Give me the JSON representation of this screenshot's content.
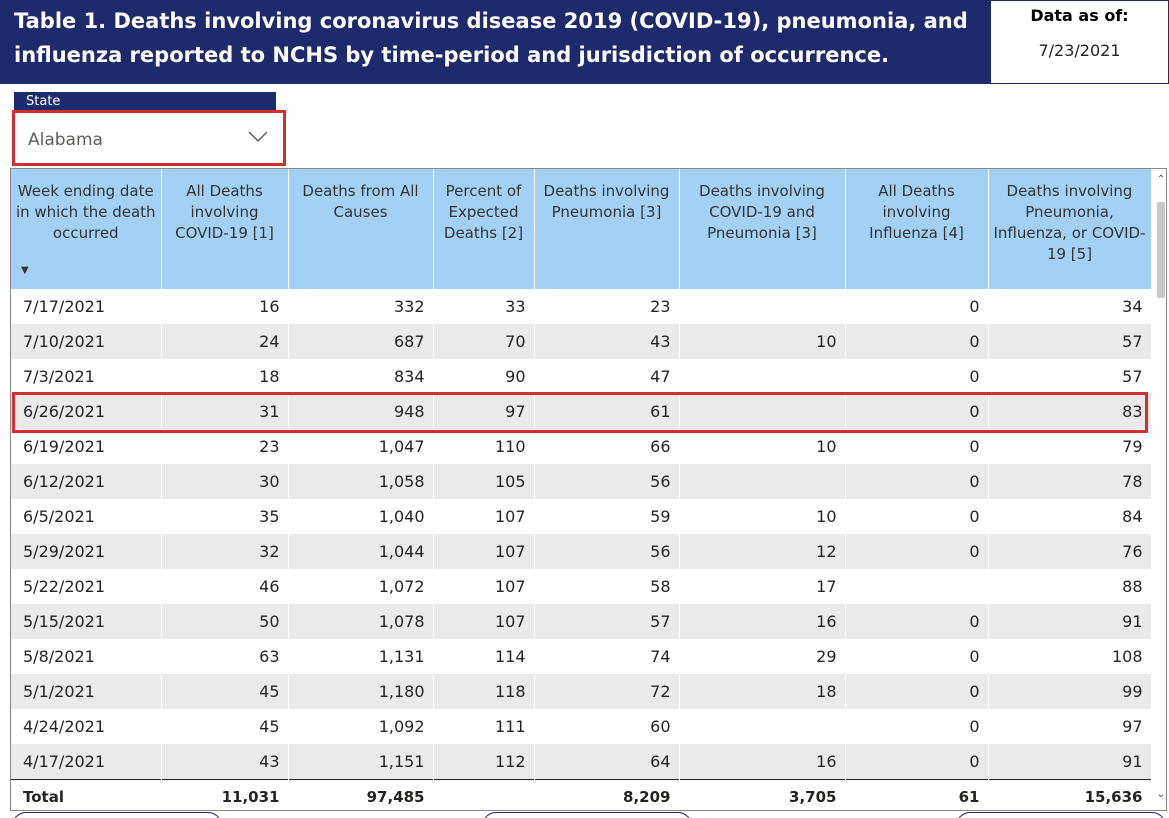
{
  "title": {
    "line1": "Table 1. Deaths involving coronavirus disease 2019 (COVID-19), pneumonia, and",
    "line2": "influenza reported to NCHS by time-period and jurisdiction of occurrence."
  },
  "data_as_of": {
    "label": "Data as of:",
    "value": "7/23/2021"
  },
  "slicer": {
    "header": "State",
    "selected": "Alabama",
    "icon": "chevron-down-icon"
  },
  "table": {
    "headers": [
      "Week ending date in which the death occurred",
      "All Deaths involving COVID-19 [1]",
      "Deaths from All Causes",
      "Percent of Expected Deaths [2]",
      "Deaths involving Pneumonia [3]",
      "Deaths involving COVID-19 and Pneumonia [3]",
      "All Deaths involving Influenza [4]",
      "Deaths involving Pneumonia, Influenza, or COVID-19 [5]"
    ],
    "rows": [
      [
        "7/17/2021",
        "16",
        "332",
        "33",
        "23",
        "",
        "0",
        "34"
      ],
      [
        "7/10/2021",
        "24",
        "687",
        "70",
        "43",
        "10",
        "0",
        "57"
      ],
      [
        "7/3/2021",
        "18",
        "834",
        "90",
        "47",
        "",
        "0",
        "57"
      ],
      [
        "6/26/2021",
        "31",
        "948",
        "97",
        "61",
        "",
        "0",
        "83"
      ],
      [
        "6/19/2021",
        "23",
        "1,047",
        "110",
        "66",
        "10",
        "0",
        "79"
      ],
      [
        "6/12/2021",
        "30",
        "1,058",
        "105",
        "56",
        "",
        "0",
        "78"
      ],
      [
        "6/5/2021",
        "35",
        "1,040",
        "107",
        "59",
        "10",
        "0",
        "84"
      ],
      [
        "5/29/2021",
        "32",
        "1,044",
        "107",
        "56",
        "12",
        "0",
        "76"
      ],
      [
        "5/22/2021",
        "46",
        "1,072",
        "107",
        "58",
        "17",
        "",
        "88"
      ],
      [
        "5/15/2021",
        "50",
        "1,078",
        "107",
        "57",
        "16",
        "0",
        "91"
      ],
      [
        "5/8/2021",
        "63",
        "1,131",
        "114",
        "74",
        "29",
        "0",
        "108"
      ],
      [
        "5/1/2021",
        "45",
        "1,180",
        "118",
        "72",
        "18",
        "0",
        "99"
      ],
      [
        "4/24/2021",
        "45",
        "1,092",
        "111",
        "60",
        "",
        "0",
        "97"
      ],
      [
        "4/17/2021",
        "43",
        "1,151",
        "112",
        "64",
        "16",
        "0",
        "91"
      ]
    ],
    "total": [
      "Total",
      "11,031",
      "97,485",
      "",
      "8,209",
      "3,705",
      "61",
      "15,636"
    ]
  },
  "colors": {
    "title_bg": "#1d2a6b",
    "header_bg": "#a3d1f6",
    "highlight": "#d32f2f"
  }
}
